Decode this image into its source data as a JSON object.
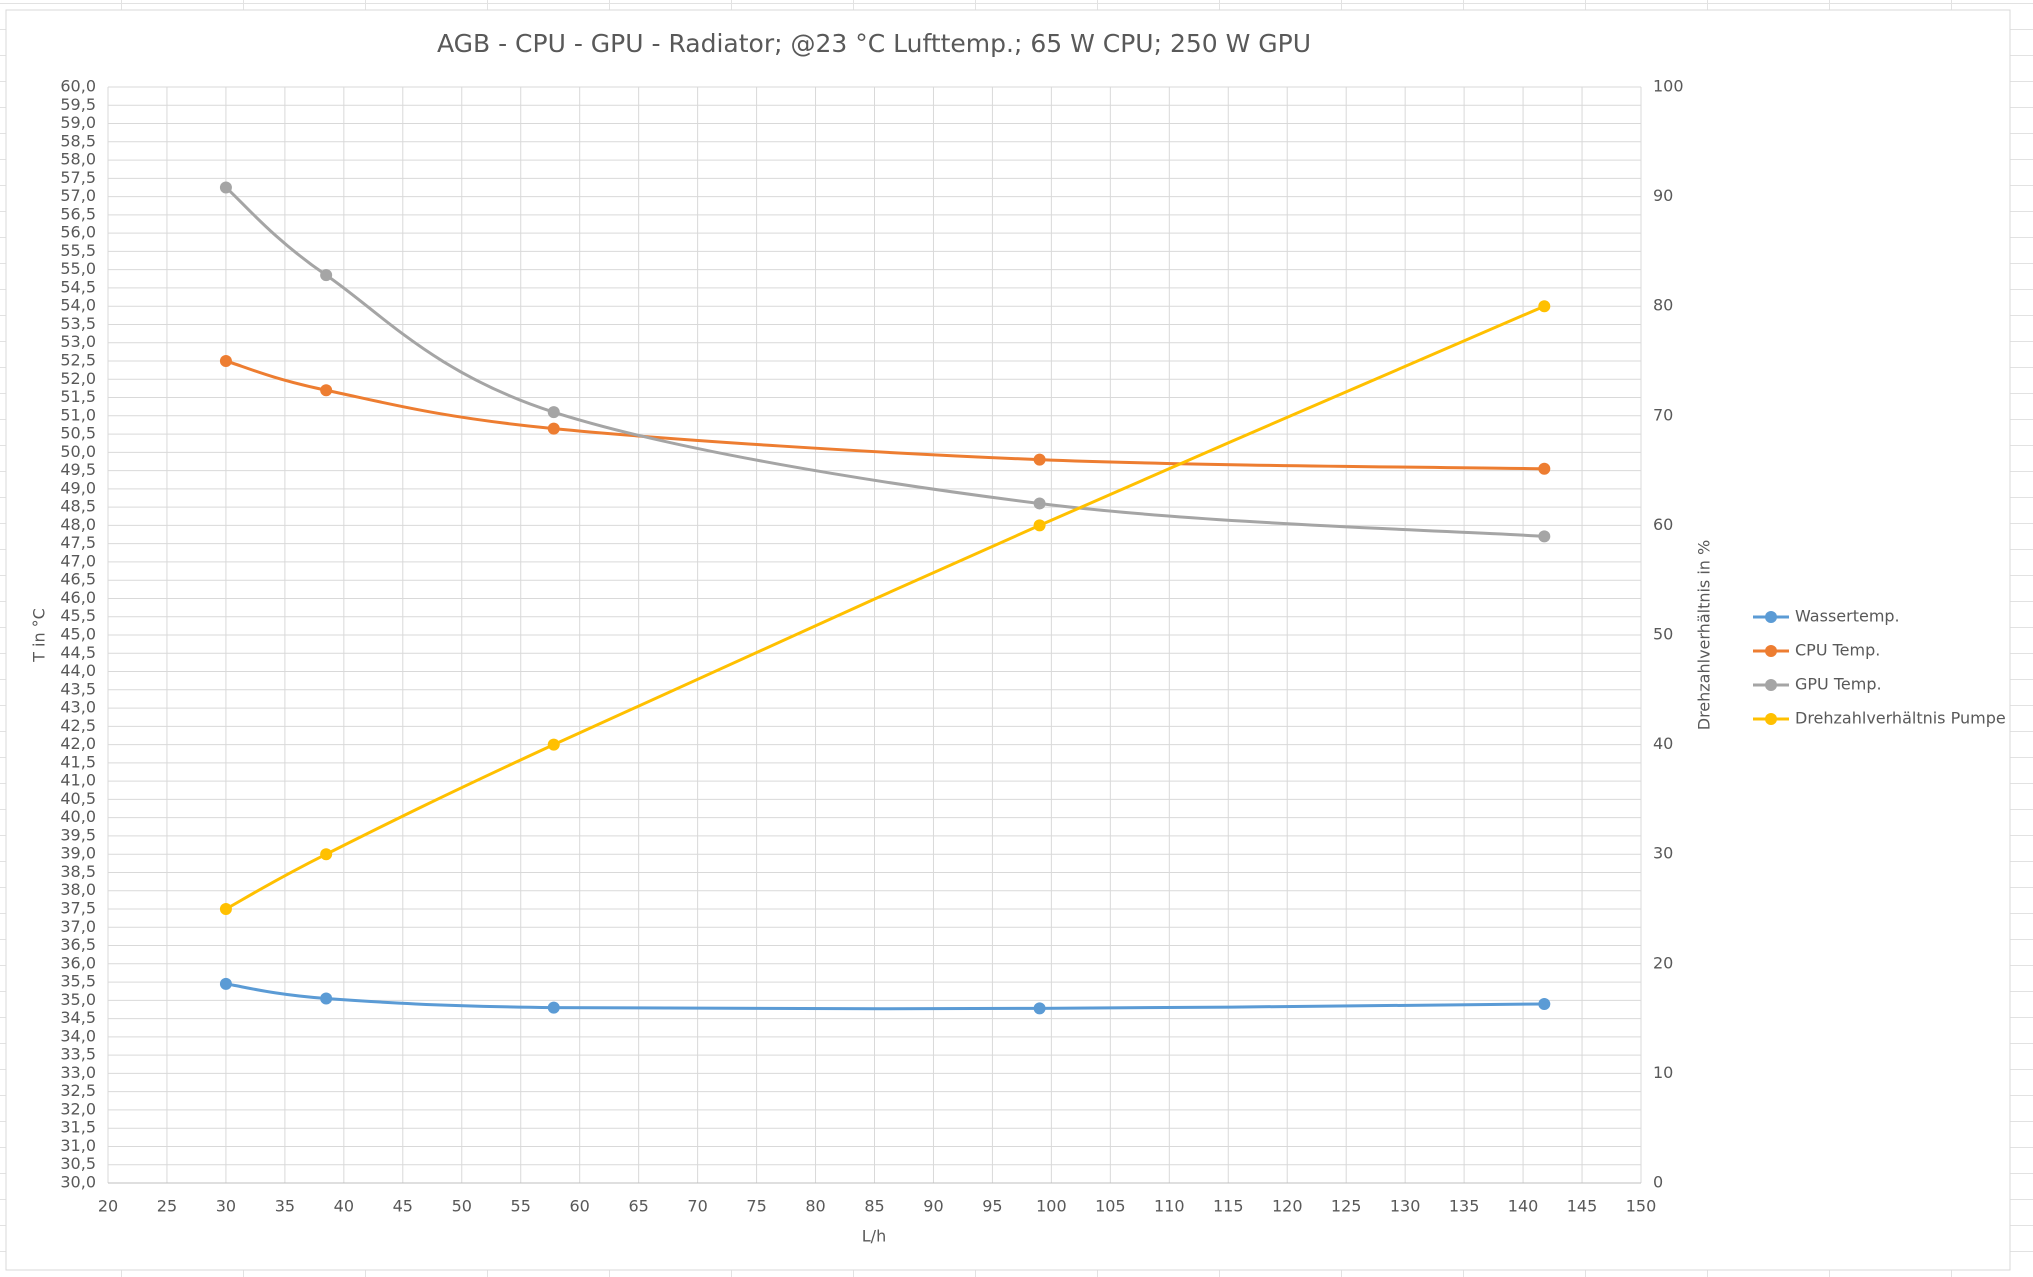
{
  "chart_data": {
    "type": "line",
    "smooth": true,
    "title": "AGB - CPU - GPU - Radiator; @23 °C Lufttemp.; 65 W CPU; 250 W GPU",
    "xlabel": "L/h",
    "ylabel": "T in °C",
    "y2label": "Drehzahlverhältnis in %",
    "x": [
      30,
      38.5,
      57.8,
      99,
      141.8
    ],
    "series": [
      {
        "name": "Wassertemp.",
        "color": "#5b9bd5",
        "values": [
          35.45,
          35.05,
          34.8,
          34.78,
          34.9
        ]
      },
      {
        "name": "CPU Temp.",
        "color": "#ed7d31",
        "values": [
          52.5,
          51.7,
          50.65,
          49.8,
          49.55
        ]
      },
      {
        "name": "GPU Temp.",
        "color": "#a5a5a5",
        "values": [
          57.25,
          54.85,
          51.1,
          48.6,
          47.7
        ]
      },
      {
        "name": "Drehzahlverhältnis Pumpe",
        "color": "#ffc000",
        "axis": "y2",
        "values": [
          25,
          30,
          40,
          60,
          80
        ]
      }
    ],
    "xlim": [
      20,
      150
    ],
    "xticks": [
      20,
      25,
      30,
      35,
      40,
      45,
      50,
      55,
      60,
      65,
      70,
      75,
      80,
      85,
      90,
      95,
      100,
      105,
      110,
      115,
      120,
      125,
      130,
      135,
      140,
      145,
      150
    ],
    "ylim": [
      30,
      60
    ],
    "yticks": [
      {
        "value": 30,
        "label": "30,0"
      },
      {
        "value": 30.5,
        "label": "30,5"
      },
      {
        "value": 31,
        "label": "31,0"
      },
      {
        "value": 31.5,
        "label": "31,5"
      },
      {
        "value": 32,
        "label": "32,0"
      },
      {
        "value": 32.5,
        "label": "32,5"
      },
      {
        "value": 33,
        "label": "33,0"
      },
      {
        "value": 33.5,
        "label": "33,5"
      },
      {
        "value": 34,
        "label": "34,0"
      },
      {
        "value": 34.5,
        "label": "34,5"
      },
      {
        "value": 35,
        "label": "35,0"
      },
      {
        "value": 35.5,
        "label": "35,5"
      },
      {
        "value": 36,
        "label": "36,0"
      },
      {
        "value": 36.5,
        "label": "36,5"
      },
      {
        "value": 37,
        "label": "37,0"
      },
      {
        "value": 37.5,
        "label": "37,5"
      },
      {
        "value": 38,
        "label": "38,0"
      },
      {
        "value": 38.5,
        "label": "38,5"
      },
      {
        "value": 39,
        "label": "39,0"
      },
      {
        "value": 39.5,
        "label": "39,5"
      },
      {
        "value": 40,
        "label": "40,0"
      },
      {
        "value": 40.5,
        "label": "40,5"
      },
      {
        "value": 41,
        "label": "41,0"
      },
      {
        "value": 41.5,
        "label": "41,5"
      },
      {
        "value": 42,
        "label": "42,0"
      },
      {
        "value": 42.5,
        "label": "42,5"
      },
      {
        "value": 43,
        "label": "43,0"
      },
      {
        "value": 43.5,
        "label": "43,5"
      },
      {
        "value": 44,
        "label": "44,0"
      },
      {
        "value": 44.5,
        "label": "44,5"
      },
      {
        "value": 45,
        "label": "45,0"
      },
      {
        "value": 45.5,
        "label": "45,5"
      },
      {
        "value": 46,
        "label": "46,0"
      },
      {
        "value": 46.5,
        "label": "46,5"
      },
      {
        "value": 47,
        "label": "47,0"
      },
      {
        "value": 47.5,
        "label": "47,5"
      },
      {
        "value": 48,
        "label": "48,0"
      },
      {
        "value": 48.5,
        "label": "48,5"
      },
      {
        "value": 49,
        "label": "49,0"
      },
      {
        "value": 49.5,
        "label": "49,5"
      },
      {
        "value": 50,
        "label": "50,0"
      },
      {
        "value": 50.5,
        "label": "50,5"
      },
      {
        "value": 51,
        "label": "51,0"
      },
      {
        "value": 51.5,
        "label": "51,5"
      },
      {
        "value": 52,
        "label": "52,0"
      },
      {
        "value": 52.5,
        "label": "52,5"
      },
      {
        "value": 53,
        "label": "53,0"
      },
      {
        "value": 53.5,
        "label": "53,5"
      },
      {
        "value": 54,
        "label": "54,0"
      },
      {
        "value": 54.5,
        "label": "54,5"
      },
      {
        "value": 55,
        "label": "55,0"
      },
      {
        "value": 55.5,
        "label": "55,5"
      },
      {
        "value": 56,
        "label": "56,0"
      },
      {
        "value": 56.5,
        "label": "56,5"
      },
      {
        "value": 57,
        "label": "57,0"
      },
      {
        "value": 57.5,
        "label": "57,5"
      },
      {
        "value": 58,
        "label": "58,0"
      },
      {
        "value": 58.5,
        "label": "58,5"
      },
      {
        "value": 59,
        "label": "59,0"
      },
      {
        "value": 59.5,
        "label": "59,5"
      },
      {
        "value": 60,
        "label": "60,0"
      }
    ],
    "y2lim": [
      0,
      100
    ],
    "y2ticks": [
      0,
      10,
      20,
      30,
      40,
      50,
      60,
      70,
      80,
      90,
      100
    ],
    "grid": true,
    "legend": "right"
  }
}
